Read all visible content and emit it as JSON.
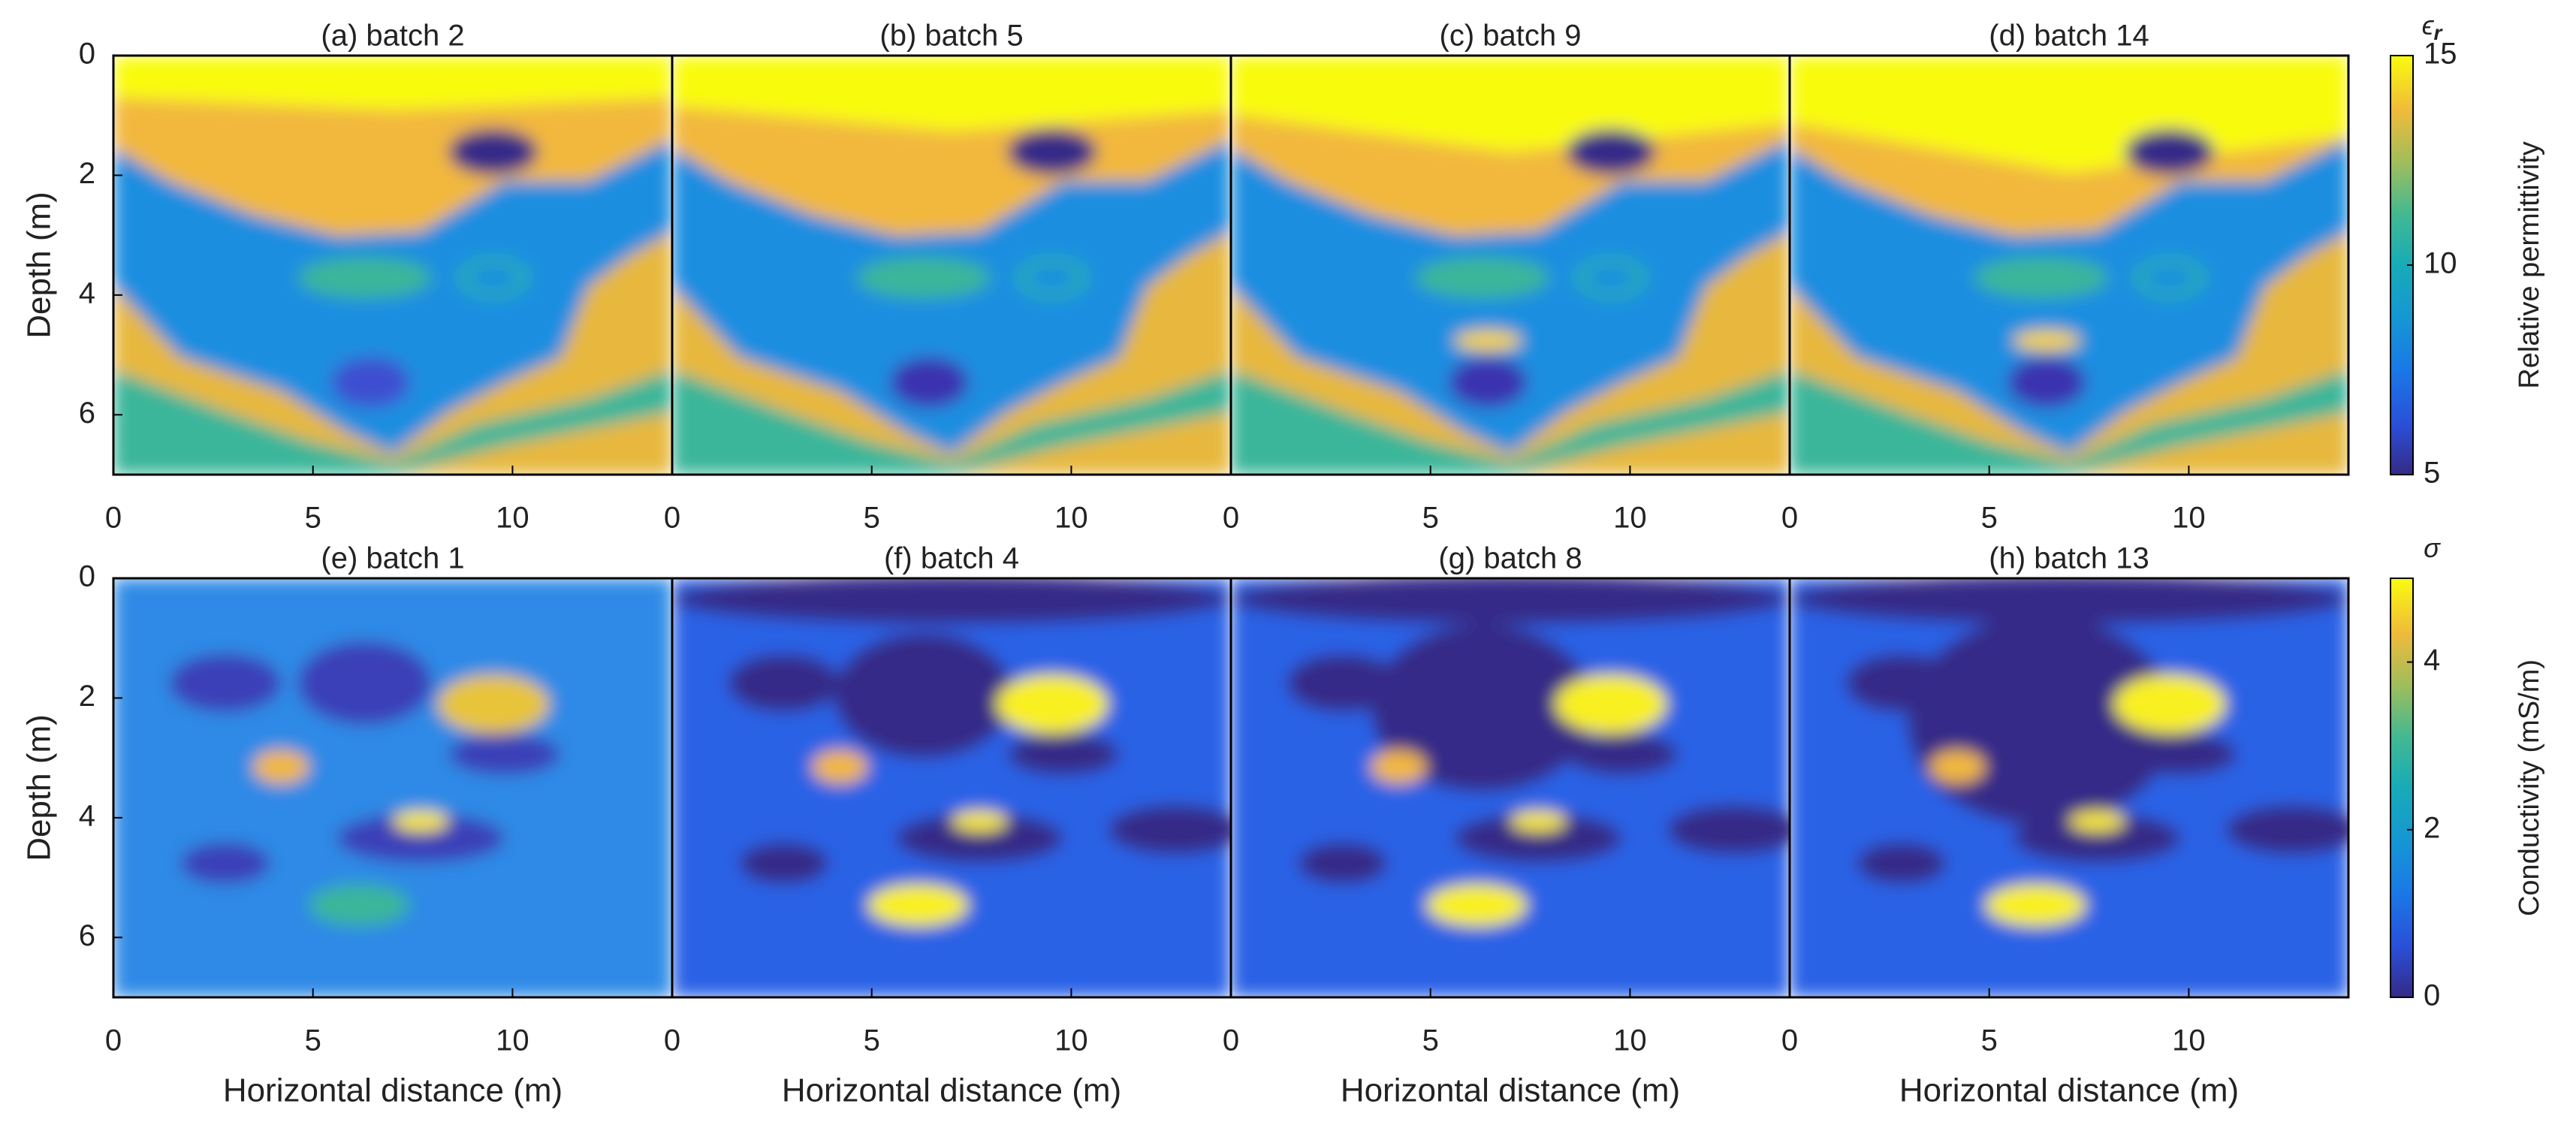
{
  "chart_data": [
    {
      "type": "heatmap",
      "panels": [
        "(a) batch 2",
        "(b) batch 5",
        "(c) batch 9",
        "(d) batch 14"
      ],
      "xlim": [
        0,
        14
      ],
      "xticks": [
        0,
        5,
        10
      ],
      "ylim": [
        0,
        7
      ],
      "yticks": [
        0,
        2,
        4,
        6
      ],
      "ylabel": "Depth (m)",
      "colorbar": {
        "symbol": "ϵ",
        "symbol_subscript": "r",
        "label": "Relative permittivity",
        "lim": [
          5,
          15
        ],
        "ticks": [
          5,
          10,
          15
        ]
      }
    },
    {
      "type": "heatmap",
      "panels": [
        "(e) batch 1",
        "(f) batch 4",
        "(g) batch 8",
        "(h) batch 13"
      ],
      "xlim": [
        0,
        14
      ],
      "xticks": [
        0,
        5,
        10
      ],
      "ylim": [
        0,
        7
      ],
      "yticks": [
        0,
        2,
        4,
        6
      ],
      "ylabel": "Depth (m)",
      "xlabel": "Horizontal distance (m)",
      "colorbar": {
        "symbol": "σ",
        "label": "Conductivity (mS/m)",
        "lim": [
          0,
          5
        ],
        "ticks": [
          0,
          2,
          4
        ]
      }
    }
  ]
}
